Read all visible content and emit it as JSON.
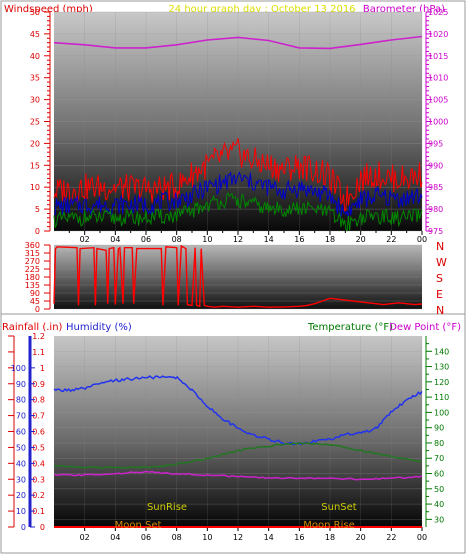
{
  "header": {
    "left_title": "Windspeed (mph)",
    "center_title": "24 hour graph day : October 13 2016",
    "right_title": "Barometer (hPa)"
  },
  "bottom_header": {
    "rainfall": "Rainfall (.in)",
    "humidity": "Humidity (%)",
    "temperature": "Temperature (°F)",
    "dewpoint": "Dew Point (°F)"
  },
  "direction_labels": [
    "N",
    "W",
    "S",
    "E",
    "N"
  ],
  "astro_labels": {
    "sunrise": "SunRise",
    "sunset": "SunSet",
    "moonset": "Moon Set",
    "moonrise": "Moon Rise"
  },
  "colors": {
    "wind_gust": "#ff0000",
    "wind_avg": "#0000cc",
    "wind_low": "#008800",
    "barometer": "#cc22cc",
    "direction": "#ff0000",
    "humidity": "#2233ee",
    "temperature": "#227722",
    "dewpoint": "#cc22cc",
    "rain": "#ff0000",
    "left_axis": "#dd0000",
    "right_axis": "#cc00cc",
    "blue_axis": "#2222cc",
    "green_axis": "#007700",
    "astro_text": "#cccc00"
  },
  "chart_data": [
    {
      "type": "line",
      "title": "24 hour graph day : October 13 2016",
      "x_tick_labels": [
        "02",
        "04",
        "06",
        "08",
        "10",
        "12",
        "14",
        "16",
        "18",
        "20",
        "22",
        "00"
      ],
      "xlim": [
        0,
        24
      ],
      "left_axis": {
        "label": "Windspeed (mph)",
        "ticks": [
          0,
          5,
          10,
          15,
          20,
          25,
          30,
          35,
          40,
          45,
          50
        ],
        "ylim": [
          0,
          50
        ]
      },
      "right_axis": {
        "label": "Barometer (hPa)",
        "ticks": [
          975,
          980,
          985,
          990,
          995,
          1000,
          1005,
          1010,
          1015,
          1020,
          1025
        ],
        "ylim": [
          975,
          1025
        ]
      },
      "series": [
        {
          "name": "Barometer",
          "axis": "right",
          "x": [
            0,
            2,
            4,
            6,
            8,
            10,
            12,
            14,
            16,
            18,
            20,
            22,
            24
          ],
          "values": [
            1018,
            1017.5,
            1016.8,
            1016.8,
            1017.5,
            1018.6,
            1019.2,
            1018.5,
            1016.8,
            1016.7,
            1017.6,
            1018.6,
            1019.4
          ]
        },
        {
          "axis": "left",
          "x": [
            0,
            2,
            4,
            6,
            8,
            9,
            10,
            11,
            12,
            13,
            14,
            15,
            16,
            17,
            18,
            19,
            20,
            21,
            22,
            23,
            24
          ],
          "values": [
            9,
            10,
            10,
            9.5,
            10,
            13,
            15,
            17,
            18,
            16,
            15,
            14,
            15,
            14,
            12,
            7,
            12,
            13,
            12,
            12,
            13
          ]
        },
        {
          "axis": "left",
          "x": [
            0,
            2,
            4,
            6,
            8,
            9,
            10,
            11,
            12,
            13,
            14,
            15,
            16,
            17,
            18,
            19,
            20,
            21,
            22,
            23,
            24
          ],
          "values": [
            5.5,
            6,
            6,
            6,
            7,
            8,
            10,
            11,
            12,
            11,
            10,
            9,
            10,
            9,
            8,
            4,
            7,
            8,
            7.5,
            7.5,
            8
          ]
        },
        {
          "axis": "left",
          "x": [
            0,
            2,
            4,
            6,
            8,
            9,
            10,
            11,
            12,
            13,
            14,
            15,
            16,
            17,
            18,
            19,
            20,
            21,
            22,
            23,
            24
          ],
          "values": [
            2.5,
            3,
            3,
            3,
            3.5,
            4.5,
            6,
            7,
            7,
            6,
            5,
            5,
            5,
            5,
            4,
            1.5,
            3,
            3.5,
            3,
            3,
            3.5
          ]
        }
      ]
    },
    {
      "type": "line",
      "title": "",
      "x_tick_labels": [
        "02",
        "04",
        "06",
        "08",
        "10",
        "12",
        "14",
        "16",
        "18",
        "20",
        "22",
        "00"
      ],
      "xlim": [
        0,
        24
      ],
      "left_axis": {
        "label": "",
        "ticks": [
          0,
          45,
          90,
          135,
          180,
          225,
          270,
          315,
          360
        ],
        "ylim": [
          0,
          360
        ]
      },
      "series": [
        {
          "axis": "left",
          "x": [
            0,
            0.1,
            0.2,
            1.5,
            1.6,
            1.7,
            2.6,
            2.7,
            2.8,
            3.4,
            3.5,
            3.6,
            3.9,
            4.0,
            4.2,
            4.3,
            4.5,
            4.6,
            5.1,
            5.2,
            5.4,
            7.0,
            7.1,
            7.3,
            8.0,
            8.1,
            8.3,
            8.6,
            8.7,
            9.0,
            9.2,
            9.3,
            9.5,
            9.6,
            9.8,
            10.0,
            10.5,
            11.0,
            12.0,
            13.0,
            14.0,
            15.0,
            16.0,
            16.5,
            17.0,
            17.5,
            18.0,
            18.5,
            19.0,
            19.5,
            20.0,
            20.5,
            21.0,
            21.5,
            22.0,
            22.5,
            23.0,
            23.5,
            24.0
          ],
          "values": [
            30,
            340,
            350,
            345,
            20,
            340,
            345,
            20,
            340,
            330,
            30,
            340,
            345,
            25,
            340,
            345,
            30,
            345,
            345,
            30,
            340,
            340,
            20,
            350,
            345,
            20,
            355,
            340,
            25,
            20,
            345,
            20,
            15,
            340,
            20,
            15,
            10,
            15,
            10,
            15,
            10,
            12,
            15,
            20,
            30,
            45,
            60,
            55,
            50,
            45,
            40,
            35,
            30,
            25,
            30,
            35,
            30,
            25,
            28
          ]
        }
      ]
    },
    {
      "type": "line",
      "title": "",
      "x_tick_labels": [
        "02",
        "04",
        "06",
        "08",
        "10",
        "12",
        "14",
        "16",
        "18",
        "20",
        "22",
        "00"
      ],
      "xlim": [
        0,
        24
      ],
      "axes": [
        {
          "label": "Rainfall (.in)",
          "ticks": [
            0,
            0.1,
            0.2,
            0.3,
            0.4,
            0.5,
            0.6,
            0.7,
            0.8,
            0.9,
            1,
            1.1,
            1.2
          ],
          "ylim": [
            0,
            1.2
          ]
        },
        {
          "label": "Humidity (%)",
          "ticks": [
            0,
            10,
            20,
            30,
            40,
            50,
            60,
            70,
            80,
            90,
            100
          ],
          "ylim": [
            0,
            120
          ]
        },
        {
          "label": "Temperature (°F)",
          "ticks": [
            30,
            40,
            50,
            60,
            70,
            80,
            90,
            100,
            110,
            120,
            130,
            140
          ],
          "ylim": [
            25,
            150
          ]
        }
      ],
      "series": [
        {
          "axis": "humidity",
          "x": [
            0,
            1,
            2,
            3,
            4,
            5,
            6,
            7,
            8,
            9,
            10,
            11,
            12,
            13,
            14,
            15,
            16,
            17,
            18,
            19,
            20,
            21,
            22,
            23,
            24
          ],
          "values": [
            86,
            86,
            87,
            90,
            92,
            93,
            94,
            94,
            94,
            86,
            76,
            68,
            62,
            58,
            55,
            53,
            52,
            54,
            55,
            58,
            59,
            62,
            72,
            80,
            85
          ]
        },
        {
          "axis": "temperature",
          "x": [
            0,
            2,
            4,
            6,
            8,
            10,
            12,
            14,
            16,
            18,
            20,
            22,
            24
          ],
          "values": [
            65,
            64,
            64,
            64,
            66,
            70,
            75,
            78,
            80,
            79,
            75,
            71,
            68
          ]
        },
        {
          "axis": "temperature",
          "x": [
            0,
            2,
            4,
            6,
            8,
            10,
            12,
            14,
            16,
            18,
            20,
            22,
            24
          ],
          "values": [
            59,
            59,
            60,
            61,
            60,
            59,
            58,
            57,
            57,
            57,
            56,
            57,
            58
          ]
        },
        {
          "axis": "rainfall",
          "x": [
            0,
            24
          ],
          "values": [
            0,
            0
          ]
        }
      ]
    }
  ]
}
